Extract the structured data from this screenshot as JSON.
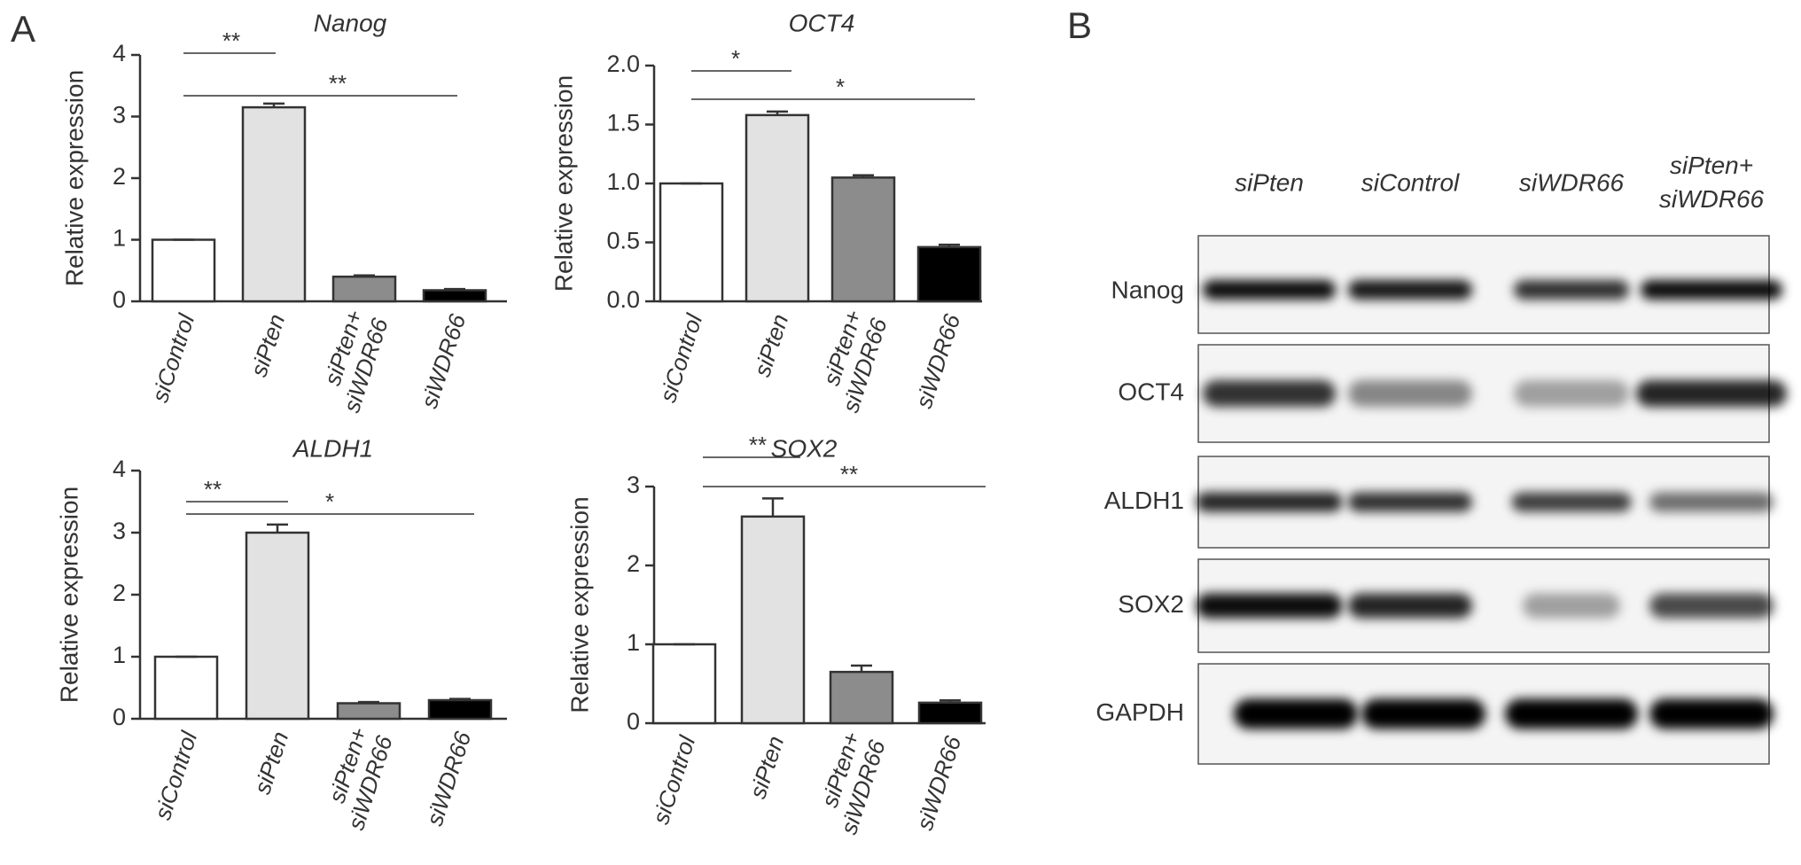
{
  "panel_labels": [
    "A",
    "B"
  ],
  "chart_data": [
    {
      "type": "bar",
      "title": "Nanog",
      "y_label": "Relative expression",
      "categories": [
        "siControl",
        "siPten",
        "siPten+ siWDR66",
        "siWDR66"
      ],
      "values": [
        1,
        3.15,
        0.4,
        0.18
      ],
      "errors": [
        0,
        0.06,
        0.02,
        0.02
      ],
      "colors": [
        "#ffffff",
        "#e2e2e2",
        "#8c8c8c",
        "#000000"
      ],
      "ylim": [
        0,
        4
      ],
      "yticks": [
        0,
        1,
        2,
        3,
        4
      ],
      "annotations": [
        "**",
        "**"
      ]
    },
    {
      "type": "bar",
      "title": "OCT4",
      "y_label": "Relative expression",
      "categories": [
        "siControl",
        "siPten",
        "siPten+ siWDR66",
        "siWDR66"
      ],
      "values": [
        1,
        1.58,
        1.05,
        0.46
      ],
      "errors": [
        0,
        0.03,
        0.02,
        0.02
      ],
      "colors": [
        "#ffffff",
        "#e2e2e2",
        "#8c8c8c",
        "#000000"
      ],
      "ylim": [
        0,
        2
      ],
      "yticks": [
        {
          "value": 0,
          "label": "0.0"
        },
        {
          "value": 0.5,
          "label": "0.5"
        },
        {
          "value": 1,
          "label": "1.0"
        },
        {
          "value": 1.5,
          "label": "1.5"
        },
        {
          "value": 2,
          "label": "2.0"
        }
      ],
      "annotations": [
        "*",
        "*"
      ]
    },
    {
      "type": "bar",
      "title": "ALDH1",
      "y_label": "Relative expression",
      "categories": [
        "siControl",
        "siPten",
        "siPten+ siWDR66",
        "siWDR66"
      ],
      "values": [
        1,
        3.0,
        0.25,
        0.3
      ],
      "errors": [
        0,
        0.13,
        0.02,
        0.02
      ],
      "colors": [
        "#ffffff",
        "#e2e2e2",
        "#8c8c8c",
        "#000000"
      ],
      "ylim": [
        0,
        4
      ],
      "yticks": [
        0,
        1,
        2,
        3,
        4
      ],
      "annotations": [
        "**",
        "*"
      ]
    },
    {
      "type": "bar",
      "title": "SOX2",
      "y_label": "Relative expression",
      "categories": [
        "siControl",
        "siPten",
        "siPten+ siWDR66",
        "siWDR66"
      ],
      "values": [
        1,
        2.62,
        0.65,
        0.26
      ],
      "errors": [
        0,
        0.23,
        0.08,
        0.03
      ],
      "colors": [
        "#ffffff",
        "#e2e2e2",
        "#8c8c8c",
        "#000000"
      ],
      "ylim": [
        0,
        3
      ],
      "yticks": [
        0,
        1,
        2,
        3
      ],
      "annotations": [
        "**",
        "**"
      ]
    }
  ],
  "blot": {
    "lanes": [
      "siPten",
      "siControl",
      "siWDR66",
      "siPten+ siWDR66"
    ],
    "rows": [
      "Nanog",
      "OCT4",
      "ALDH1",
      "SOX2",
      "GAPDH"
    ]
  }
}
